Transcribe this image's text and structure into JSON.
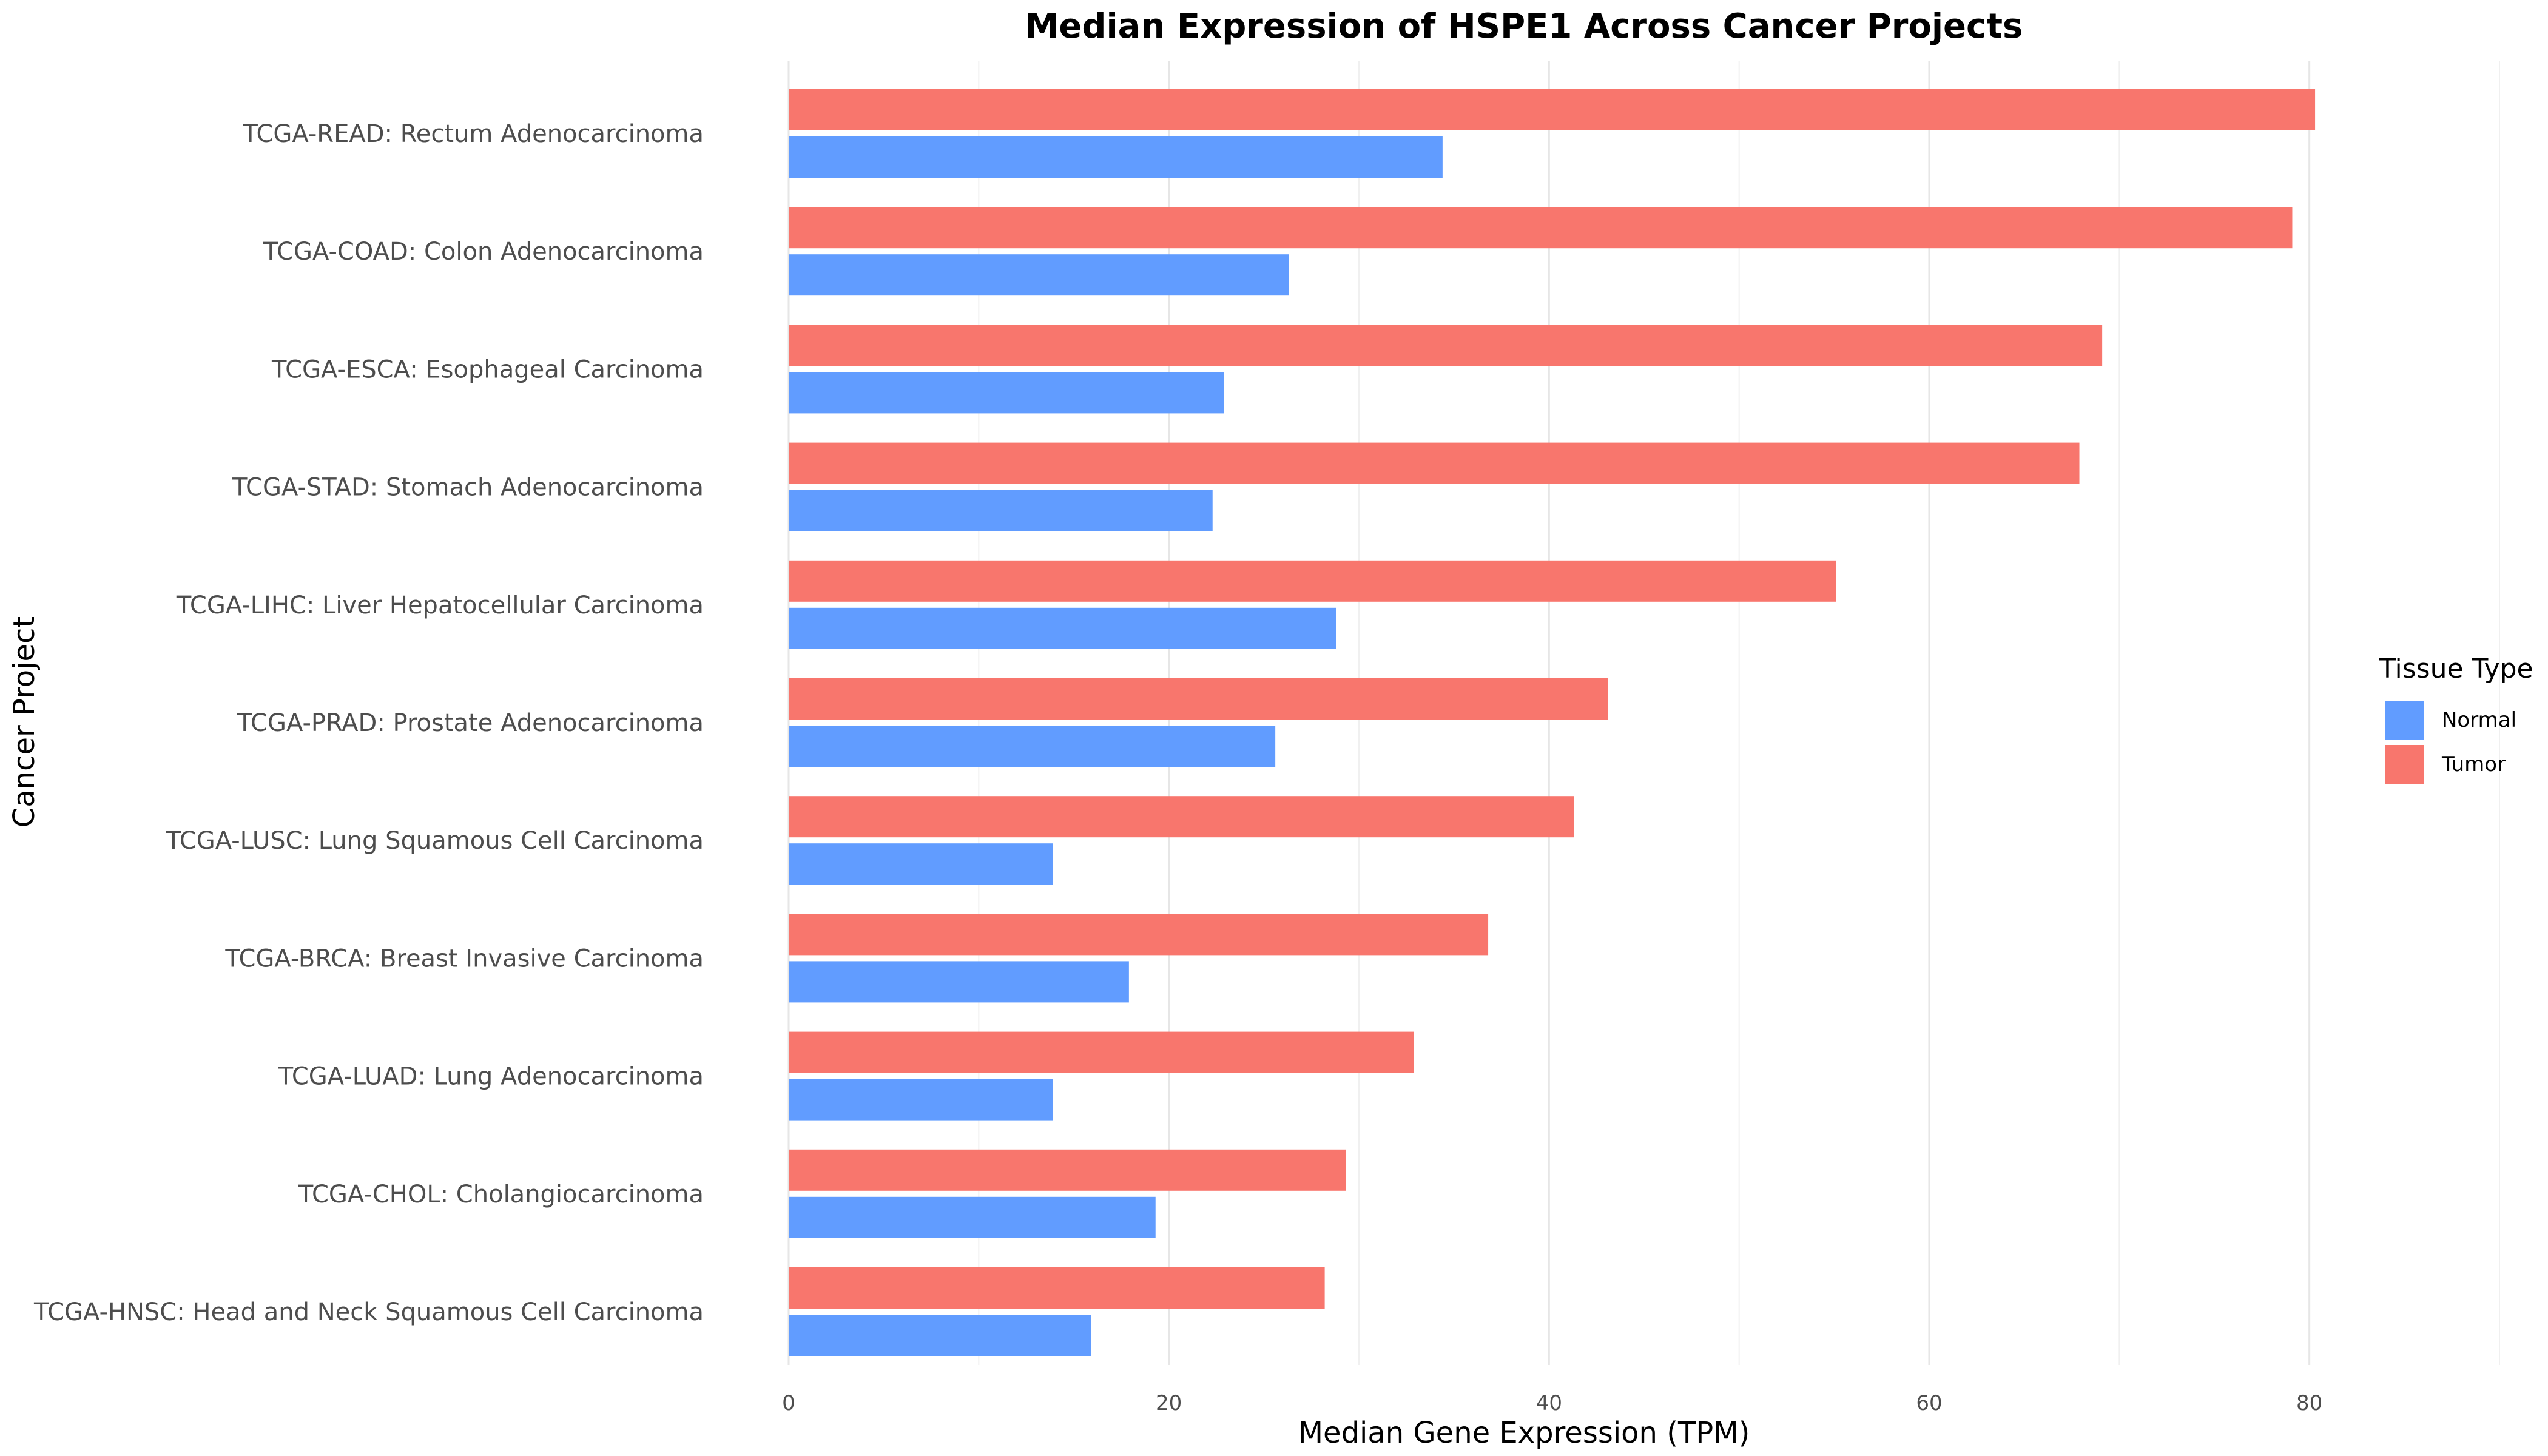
{
  "chart_data": {
    "type": "bar",
    "orientation": "horizontal",
    "title": "Median Expression of HSPE1 Across Cancer Projects",
    "xlabel": "Median Gene Expression (TPM)",
    "ylabel": "Cancer Project",
    "xlim": [
      0,
      90
    ],
    "xticks": [
      0,
      20,
      40,
      60,
      80
    ],
    "grid": true,
    "categories": [
      "TCGA-READ: Rectum Adenocarcinoma",
      "TCGA-COAD: Colon Adenocarcinoma",
      "TCGA-ESCA: Esophageal Carcinoma",
      "TCGA-STAD: Stomach Adenocarcinoma",
      "TCGA-LIHC: Liver Hepatocellular Carcinoma",
      "TCGA-PRAD: Prostate Adenocarcinoma",
      "TCGA-LUSC: Lung Squamous Cell Carcinoma",
      "TCGA-BRCA: Breast Invasive Carcinoma",
      "TCGA-LUAD: Lung Adenocarcinoma",
      "TCGA-CHOL: Cholangiocarcinoma",
      "TCGA-HNSC: Head and Neck Squamous Cell Carcinoma"
    ],
    "series": [
      {
        "name": "Tumor",
        "color": "#F8766D",
        "values": [
          80.3,
          79.1,
          69.1,
          67.9,
          55.1,
          43.1,
          41.3,
          36.8,
          32.9,
          29.3,
          28.2
        ]
      },
      {
        "name": "Normal",
        "color": "#619CFF",
        "values": [
          34.4,
          26.3,
          22.9,
          22.3,
          28.8,
          25.6,
          13.9,
          17.9,
          13.9,
          19.3,
          15.9
        ]
      }
    ],
    "legend": {
      "title": "Tissue Type",
      "position": "right",
      "entries": [
        {
          "label": "Normal",
          "color": "#619CFF"
        },
        {
          "label": "Tumor",
          "color": "#F8766D"
        }
      ]
    }
  }
}
